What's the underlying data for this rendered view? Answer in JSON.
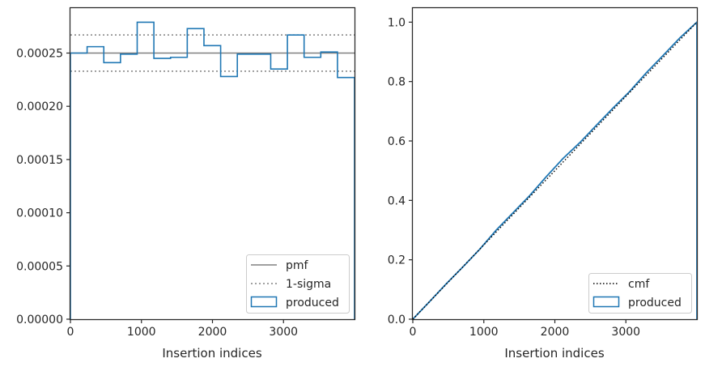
{
  "colors": {
    "produced": "#1f77b4",
    "pmf": "#808080",
    "sigma": "#808080",
    "cmf": "#000000",
    "axis": "#262626"
  },
  "chart_data": [
    {
      "type": "histogram",
      "xlabel": "Insertion indices",
      "ylabel": "",
      "xlim": [
        0,
        4000
      ],
      "ylim": [
        0,
        0.000293
      ],
      "xticks": [
        0,
        1000,
        2000,
        3000
      ],
      "xtick_labels": [
        "0",
        "1000",
        "2000",
        "3000"
      ],
      "yticks": [
        0,
        5e-05,
        0.0001,
        0.00015,
        0.0002,
        0.00025
      ],
      "ytick_labels": [
        "0.00000",
        "0.00005",
        "0.00010",
        "0.00015",
        "0.00020",
        "0.00025"
      ],
      "bin_edges": [
        0,
        235,
        470,
        705,
        940,
        1175,
        1410,
        1645,
        1880,
        2115,
        2350,
        2585,
        2820,
        3055,
        3290,
        3525,
        3760,
        4000
      ],
      "values": [
        0.00025,
        0.000256,
        0.000241,
        0.000249,
        0.000279,
        0.000245,
        0.000246,
        0.000273,
        0.000257,
        0.000228,
        0.000249,
        0.000249,
        0.000235,
        0.000267,
        0.000246,
        0.000251,
        0.000227
      ],
      "pmf": 0.00025,
      "sigma_band": [
        0.000233,
        0.000267
      ],
      "grid": false,
      "legend_position": "lower right",
      "legend": [
        "pmf",
        "1-sigma",
        "produced"
      ]
    },
    {
      "type": "line",
      "xlabel": "Insertion indices",
      "ylabel": "",
      "xlim": [
        0,
        4000
      ],
      "ylim": [
        0,
        1.05
      ],
      "xticks": [
        0,
        1000,
        2000,
        3000
      ],
      "xtick_labels": [
        "0",
        "1000",
        "2000",
        "3000"
      ],
      "yticks": [
        0,
        0.2,
        0.4,
        0.6,
        0.8,
        1.0
      ],
      "ytick_labels": [
        "0.0",
        "0.2",
        "0.4",
        "0.6",
        "0.8",
        "1.0"
      ],
      "cmf": {
        "x": [
          0,
          4000
        ],
        "y": [
          0,
          1
        ]
      },
      "produced": {
        "x": [
          0,
          235,
          470,
          705,
          940,
          1175,
          1410,
          1645,
          1880,
          2115,
          2350,
          2585,
          2820,
          3055,
          3290,
          3525,
          3760,
          4000
        ],
        "y": [
          0,
          0.059,
          0.119,
          0.176,
          0.235,
          0.3,
          0.358,
          0.416,
          0.48,
          0.541,
          0.594,
          0.653,
          0.711,
          0.767,
          0.83,
          0.888,
          0.947,
          1.0
        ]
      },
      "grid": false,
      "legend_position": "lower right",
      "legend": [
        "cmf",
        "produced"
      ]
    }
  ]
}
